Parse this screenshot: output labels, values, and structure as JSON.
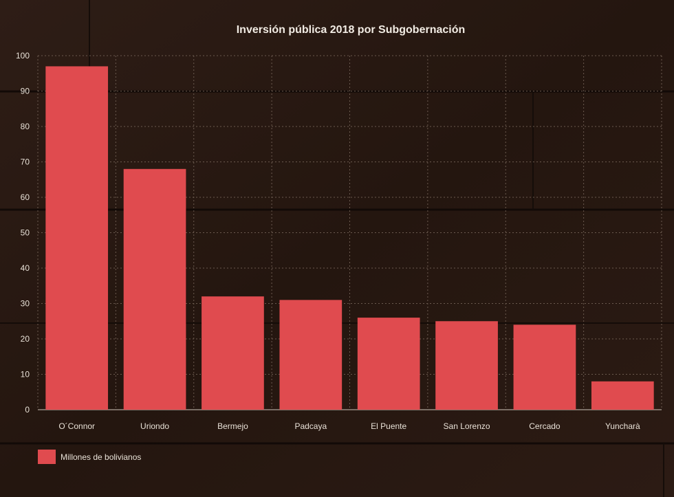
{
  "chart_data": {
    "type": "bar",
    "title": "Inversión pública 2018 por Subgobernación",
    "xlabel": "",
    "ylabel": "",
    "categories": [
      "O´Connor",
      "Uriondo",
      "Bermejo",
      "Padcaya",
      "El Puente",
      "San Lorenzo",
      "Cercado",
      "Yuncharà"
    ],
    "series": [
      {
        "name": "Millones de bolivianos",
        "values": [
          97,
          68,
          32,
          31,
          26,
          25,
          24,
          8
        ],
        "color": "#e04b4f"
      }
    ],
    "ylim": [
      0,
      100
    ],
    "yticks": [
      0,
      10,
      20,
      30,
      40,
      50,
      60,
      70,
      80,
      90,
      100
    ],
    "grid": true,
    "legend_position": "bottom-left"
  },
  "colors": {
    "background_wood": "#2a1a14",
    "bar": "#e04b4f",
    "text": "#e9e2d8"
  }
}
